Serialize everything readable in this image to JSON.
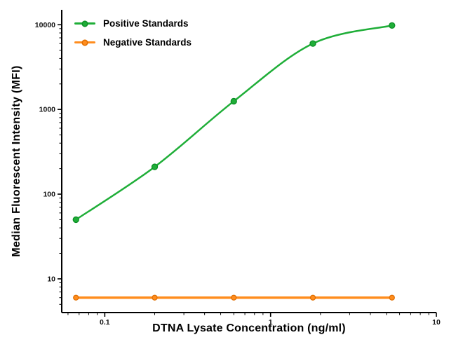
{
  "figure": {
    "background": "#ffffff",
    "axis_color": "#000000",
    "tick_label_color": "#111111"
  },
  "chart_data": {
    "type": "line",
    "title": "",
    "xlabel": "DTNA Lysate Concentration (ng/ml)",
    "ylabel": "Median Fluorescent Intensity (MFI)",
    "x_scale": "log",
    "y_scale": "log",
    "xlim": [
      0.055,
      10
    ],
    "ylim": [
      4,
      15000
    ],
    "grid": false,
    "legend_position": "top-left",
    "x_ticks": [
      {
        "value": 0.1,
        "label": "0.1"
      },
      {
        "value": 1,
        "label": "1"
      },
      {
        "value": 10,
        "label": "10"
      }
    ],
    "y_ticks": [
      {
        "value": 10,
        "label": "10"
      },
      {
        "value": 100,
        "label": "100"
      },
      {
        "value": 1000,
        "label": "1000"
      },
      {
        "value": 10000,
        "label": "10000"
      }
    ],
    "series": [
      {
        "name": "Positive Standards",
        "color": "#1fae38",
        "edge": "#0c8f26",
        "smooth": true,
        "line_width": 2.5,
        "marker_radius": 4,
        "x": [
          0.067,
          0.2,
          0.6,
          1.8,
          5.4
        ],
        "y": [
          50,
          210,
          1250,
          6000,
          9800
        ]
      },
      {
        "name": "Negative Standards",
        "color": "#ff8d1e",
        "edge": "#e06e00",
        "smooth": false,
        "line_width": 3.5,
        "marker_radius": 3.5,
        "x": [
          0.067,
          0.2,
          0.6,
          1.8,
          5.4
        ],
        "y": [
          6,
          6,
          6,
          6,
          6
        ]
      }
    ]
  }
}
